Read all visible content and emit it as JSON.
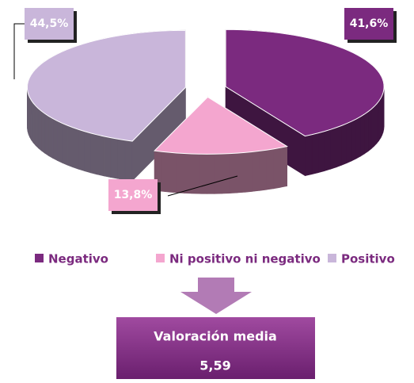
{
  "chart_data": {
    "type": "pie",
    "categories": [
      "Negativo",
      "Ni positivo ni negativo",
      "Positivo"
    ],
    "values": [
      41.6,
      13.8,
      44.5
    ],
    "value_labels": [
      "41,6%",
      "13,8%",
      "44,5%"
    ],
    "colors": [
      "#7b2a7f",
      "#f4a6cf",
      "#c9b6da"
    ],
    "legend": "bottom"
  },
  "summary": {
    "label": "Valoración media",
    "value": "5,59"
  }
}
